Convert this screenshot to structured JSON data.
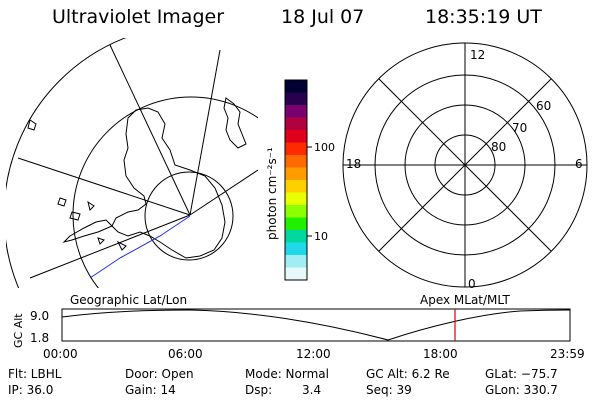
{
  "header": {
    "title": "Ultraviolet Imager",
    "date": "18 Jul 07",
    "time": "18:35:19 UT"
  },
  "left_map": {
    "label": "Geographic Lat/Lon"
  },
  "right_map": {
    "label": "Apex  MLat/MLT",
    "mlt_labels": [
      "12",
      "18",
      "6",
      "0"
    ],
    "lat_labels": [
      "60",
      "70",
      "80"
    ]
  },
  "colorbar": {
    "unit": "photon cm⁻²s⁻¹",
    "tick_labels": [
      "100",
      "10"
    ],
    "colors": [
      "#000033",
      "#26004f",
      "#7a0070",
      "#b00040",
      "#e0001c",
      "#ff2a00",
      "#ff6a00",
      "#ff9c00",
      "#ffd000",
      "#e8ff00",
      "#8cff00",
      "#20f000",
      "#00d8a0",
      "#20d8e8",
      "#a0eef4",
      "#e8f8fa"
    ]
  },
  "timeline": {
    "y_axis_label": "GC Alt",
    "y_ticks": [
      "9.0",
      "1.8"
    ],
    "x_ticks": [
      "00:00",
      "06:00",
      "12:00",
      "18:00",
      "23:59"
    ],
    "current_time_color": "#dd0000"
  },
  "info": {
    "filter_label": "Flt: LBHL",
    "ip_label": "IP: 36.0",
    "door_label": "Door: Open",
    "gain_label": "Gain: 14",
    "mode_label": "Mode: Normal",
    "dsp_label": "Dsp:",
    "dsp_value": "3.4",
    "gcalt_label": "GC Alt: 6.2 Re",
    "seq_label": "Seq: 39",
    "glat_label": "GLat: −75.7",
    "glon_label": "GLon: 330.7"
  }
}
